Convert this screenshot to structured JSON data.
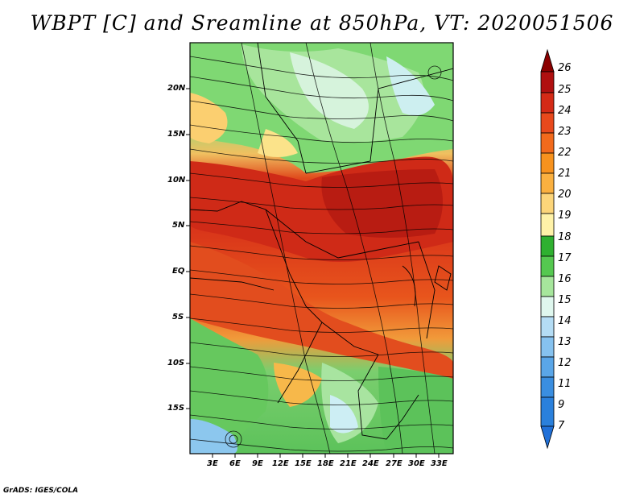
{
  "title": "WBPT [C] and Sreamline at 850hPa, VT: 2020051506",
  "footer": "GrADS: IGES/COLA",
  "map": {
    "lat_ticks": [
      "20N",
      "15N",
      "10N",
      "5N",
      "EQ",
      "5S",
      "10S",
      "15S"
    ],
    "lon_ticks": [
      "3E",
      "6E",
      "9E",
      "12E",
      "15E",
      "18E",
      "21E",
      "24E",
      "27E",
      "30E",
      "33E"
    ]
  },
  "colorbar": {
    "labels": [
      "26",
      "25",
      "24",
      "23",
      "22",
      "21",
      "20",
      "19",
      "18",
      "17",
      "16",
      "15",
      "14",
      "13",
      "12",
      "11",
      "9",
      "7"
    ],
    "colors": [
      "#8b0000",
      "#b01010",
      "#d42a16",
      "#e8491c",
      "#f26a1c",
      "#f7921e",
      "#fab040",
      "#fcd57a",
      "#fff2a8",
      "#2fb030",
      "#55c850",
      "#a6e69c",
      "#dff7ee",
      "#b4dcf4",
      "#86c2ef",
      "#5aa6e8",
      "#3a8ee0",
      "#2070d8"
    ]
  }
}
